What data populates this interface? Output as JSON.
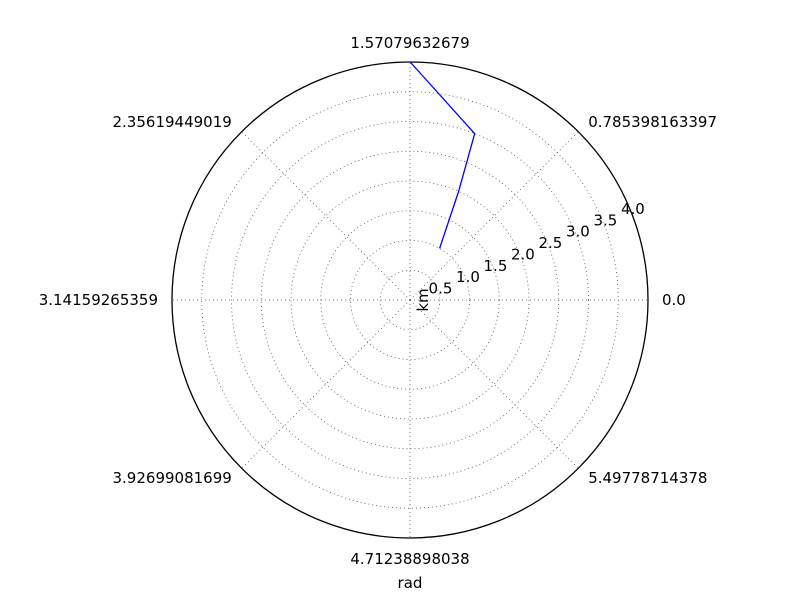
{
  "chart_data": {
    "type": "line",
    "projection": "polar",
    "title": "",
    "xlabel": "rad",
    "ylabel": "km",
    "grid": true,
    "rlim": [
      0,
      4.0
    ],
    "theta_ticks": [
      {
        "value": 0.0,
        "label": "0.0"
      },
      {
        "value": 0.785398163397,
        "label": "0.785398163397"
      },
      {
        "value": 1.57079632679,
        "label": "1.57079632679"
      },
      {
        "value": 2.35619449019,
        "label": "2.35619449019"
      },
      {
        "value": 3.14159265359,
        "label": "3.14159265359"
      },
      {
        "value": 3.92699081699,
        "label": "3.92699081699"
      },
      {
        "value": 4.71238898038,
        "label": "4.71238898038"
      },
      {
        "value": 5.49778714378,
        "label": "5.49778714378"
      }
    ],
    "r_ticks": [
      {
        "value": 0.5,
        "label": "0.5"
      },
      {
        "value": 1.0,
        "label": "1.0"
      },
      {
        "value": 1.5,
        "label": "1.5"
      },
      {
        "value": 2.0,
        "label": "2.0"
      },
      {
        "value": 2.5,
        "label": "2.5"
      },
      {
        "value": 3.0,
        "label": "3.0"
      },
      {
        "value": 3.5,
        "label": "3.5"
      },
      {
        "value": 4.0,
        "label": "4.0"
      }
    ],
    "series": [
      {
        "color": "#0000ff",
        "theta": [
          1.05,
          1.15,
          1.2,
          1.57
        ],
        "r": [
          1.0,
          2.0,
          3.0,
          4.0
        ]
      }
    ]
  }
}
